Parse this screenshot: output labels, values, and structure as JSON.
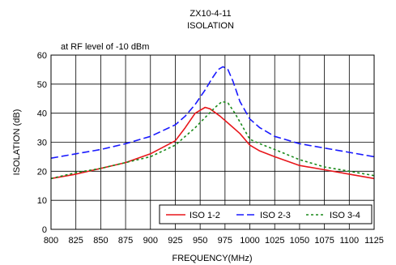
{
  "chart_data": {
    "type": "line",
    "title": "ZX10-4-11",
    "subtitle": "ISOLATION",
    "annotation": "at RF level of -10 dBm",
    "xlabel": "FREQUENCY(MHz)",
    "ylabel": "ISOLATION (dB)",
    "xlim": [
      800,
      1125
    ],
    "ylim": [
      0,
      60
    ],
    "xticks": [
      "800",
      "825",
      "850",
      "875",
      "900",
      "925",
      "950",
      "975",
      "1000",
      "1025",
      "1050",
      "1075",
      "1100",
      "1125"
    ],
    "yticks": [
      "0",
      "10",
      "20",
      "30",
      "40",
      "50",
      "60"
    ],
    "grid": true,
    "legend_position": "bottom-right",
    "series": [
      {
        "name": "ISO 1-2",
        "color": "#e8161b",
        "style": "solid",
        "x": [
          800,
          825,
          850,
          875,
          900,
          925,
          935,
          945,
          955,
          960,
          970,
          980,
          990,
          1000,
          1010,
          1025,
          1050,
          1075,
          1100,
          1125
        ],
        "y": [
          17.5,
          19,
          21,
          23,
          26,
          30.5,
          35,
          40,
          42,
          41.5,
          39,
          36,
          33,
          29,
          27,
          25,
          22,
          20.5,
          19,
          17.5
        ]
      },
      {
        "name": "ISO 2-3",
        "color": "#1a1aff",
        "style": "dashed",
        "x": [
          800,
          825,
          850,
          875,
          900,
          925,
          935,
          945,
          955,
          962,
          968,
          973,
          978,
          983,
          990,
          1000,
          1010,
          1025,
          1050,
          1075,
          1100,
          1125
        ],
        "y": [
          24.5,
          26,
          27.5,
          29.5,
          32,
          36,
          39,
          43,
          48,
          52,
          55,
          56,
          55,
          51,
          44,
          38,
          35,
          32,
          29.5,
          28,
          26.5,
          25
        ]
      },
      {
        "name": "ISO 3-4",
        "color": "#1a8a1a",
        "style": "dotted",
        "x": [
          800,
          825,
          850,
          875,
          900,
          925,
          935,
          945,
          955,
          965,
          972,
          978,
          985,
          995,
          1000,
          1010,
          1025,
          1050,
          1075,
          1100,
          1125
        ],
        "y": [
          17.5,
          19.5,
          21,
          23,
          25,
          29,
          32,
          35,
          38.5,
          42,
          44,
          43.5,
          40,
          34,
          31,
          29.5,
          27.5,
          24,
          21.5,
          20,
          18.5
        ]
      }
    ]
  }
}
